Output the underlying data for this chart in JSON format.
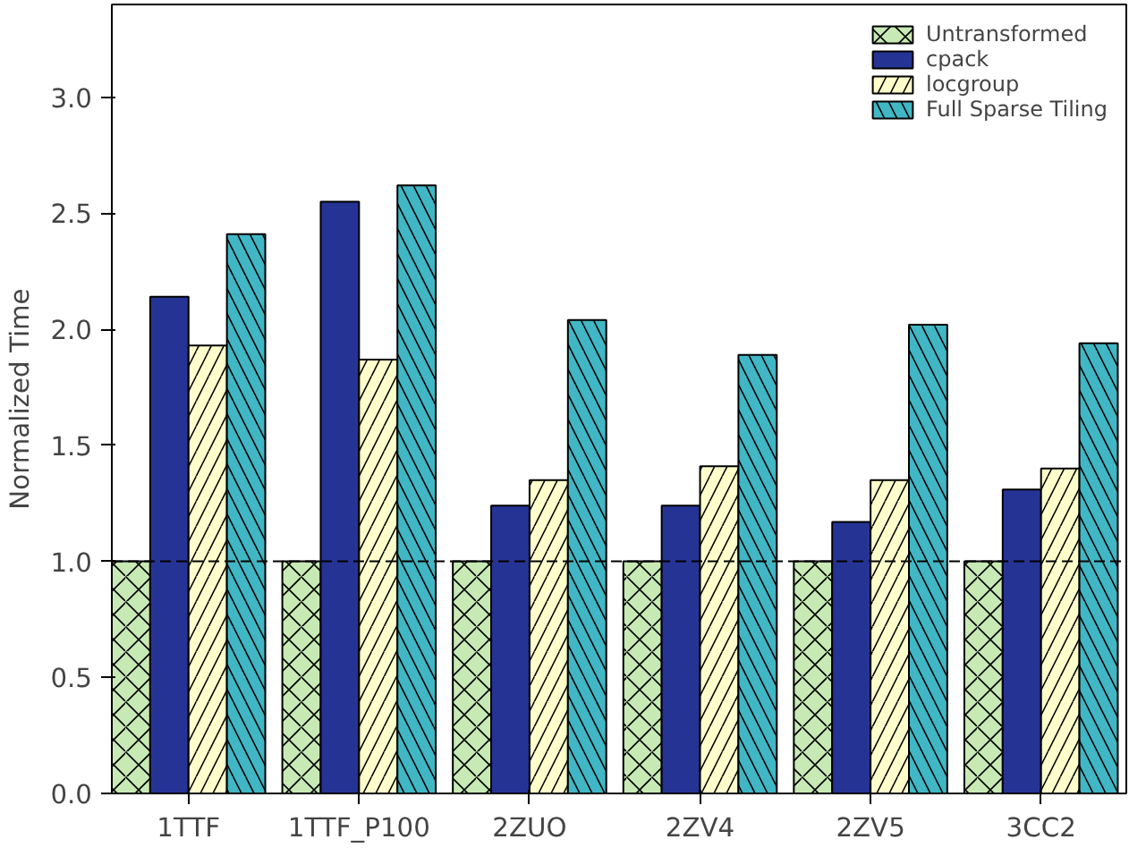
{
  "chart_data": {
    "type": "bar",
    "ylabel": "Normalized Time",
    "categories": [
      "1TTF",
      "1TTF_P100",
      "2ZUO",
      "2ZV4",
      "2ZV5",
      "3CC2"
    ],
    "series": [
      {
        "name": "Untransformed",
        "color": "#c7e9b4",
        "values": [
          1.0,
          1.0,
          1.0,
          1.0,
          1.0,
          1.0
        ]
      },
      {
        "name": "cpack",
        "color": "#253494",
        "values": [
          2.14,
          2.55,
          1.24,
          1.24,
          1.17,
          1.31
        ]
      },
      {
        "name": "locgroup",
        "color": "#ffffcc",
        "values": [
          1.93,
          1.87,
          1.35,
          1.41,
          1.35,
          1.4
        ]
      },
      {
        "name": "Full Sparse Tiling",
        "color": "#41b6c4",
        "values": [
          2.41,
          2.62,
          2.04,
          1.89,
          2.02,
          1.94
        ]
      }
    ],
    "ylim": [
      0,
      3.4
    ],
    "yticks": [
      {
        "value": 0,
        "label": "0.0"
      },
      {
        "value": 0.5,
        "label": "0.5"
      },
      {
        "value": 1,
        "label": "1.0"
      },
      {
        "value": 1.5,
        "label": "1.5"
      },
      {
        "value": 2,
        "label": "2.0"
      },
      {
        "value": 2.5,
        "label": "2.5"
      },
      {
        "value": 3,
        "label": "3.0"
      }
    ],
    "ref_lines": [
      {
        "axis": "y",
        "value": 1,
        "color": "#000000",
        "line_style": "dashed"
      }
    ],
    "grid": false,
    "legend": "top right"
  }
}
